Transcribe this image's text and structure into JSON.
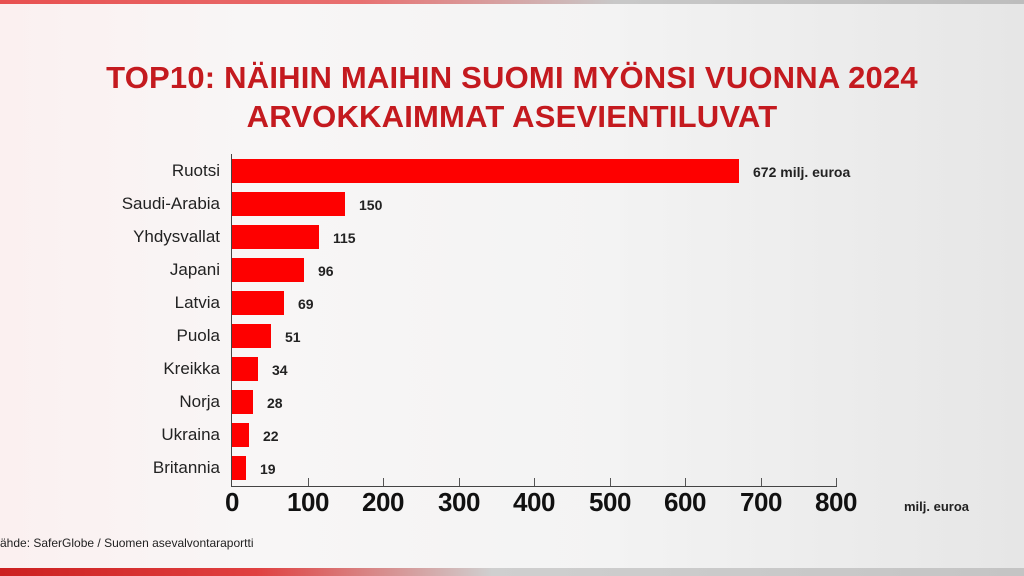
{
  "header": {
    "title_line1": "TOP10: NÄIHIN MAIHIN SUOMI MYÖNSI VUONNA 2024",
    "title_line2": "ARVOKKAIMMAT ASEVIENTILUVAT"
  },
  "footer": {
    "source": "ähde: SaferGlobe / Suomen asevalvontaraportti"
  },
  "colors": {
    "title": "#c41a1f",
    "bar": "#fe0000"
  },
  "chart_data": {
    "type": "bar",
    "orientation": "horizontal",
    "title": "TOP10: NÄIHIN MAIHIN SUOMI MYÖNSI VUONNA 2024 ARVOKKAIMMAT ASEVIENTILUVAT",
    "categories": [
      "Ruotsi",
      "Saudi-Arabia",
      "Yhdysvallat",
      "Japani",
      "Latvia",
      "Puola",
      "Kreikka",
      "Norja",
      "Ukraina",
      "Britannia"
    ],
    "values": [
      672,
      150,
      115,
      96,
      69,
      51,
      34,
      28,
      22,
      19
    ],
    "value_labels": [
      "672 milj. euroa",
      "150",
      "115",
      "96",
      "69",
      "51",
      "34",
      "28",
      "22",
      "19"
    ],
    "xlabel": "milj. euroa",
    "ylabel": "",
    "xlim": [
      0,
      800
    ],
    "xticks": [
      "0",
      "100",
      "200",
      "300",
      "400",
      "500",
      "600",
      "700",
      "800"
    ],
    "grid": false,
    "legend": null
  }
}
